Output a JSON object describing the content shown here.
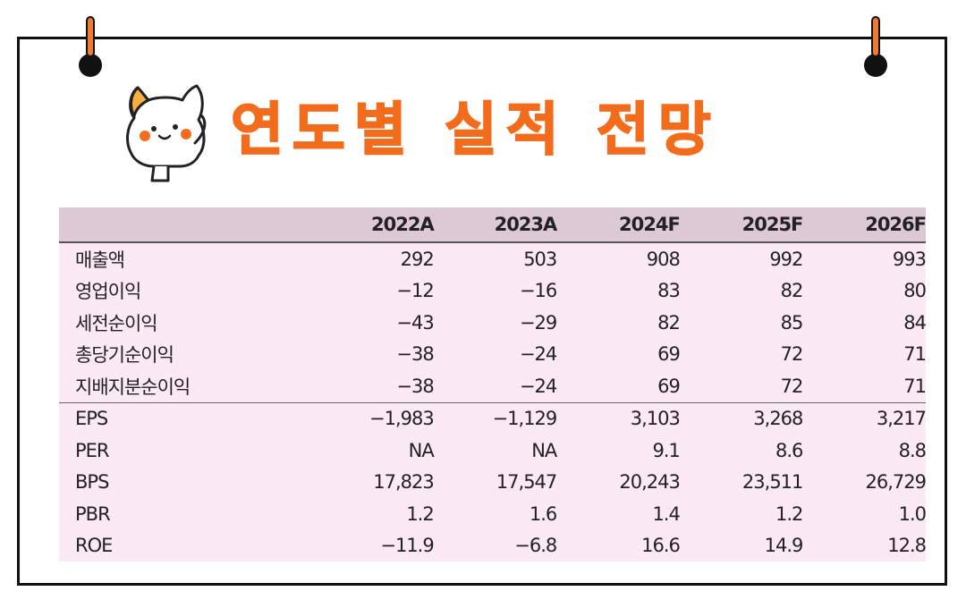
{
  "title": "연도별 실적 전망",
  "table": {
    "columns": [
      "2022A",
      "2023A",
      "2024F",
      "2025F",
      "2026F"
    ],
    "rows": [
      {
        "label": "매출액",
        "values": [
          "292",
          "503",
          "908",
          "992",
          "993"
        ]
      },
      {
        "label": "영업이익",
        "values": [
          "−12",
          "−16",
          "83",
          "82",
          "80"
        ]
      },
      {
        "label": "세전순이익",
        "values": [
          "−43",
          "−29",
          "82",
          "85",
          "84"
        ]
      },
      {
        "label": "총당기순이익",
        "values": [
          "−38",
          "−24",
          "69",
          "72",
          "71"
        ]
      },
      {
        "label": "지배지분순이익",
        "values": [
          "−38",
          "−24",
          "69",
          "72",
          "71"
        ]
      },
      {
        "label": "EPS",
        "values": [
          "−1,983",
          "−1,129",
          "3,103",
          "3,268",
          "3,217"
        ]
      },
      {
        "label": "PER",
        "values": [
          "NA",
          "NA",
          "9.1",
          "8.6",
          "8.8"
        ]
      },
      {
        "label": "BPS",
        "values": [
          "17,823",
          "17,547",
          "20,243",
          "23,511",
          "26,729"
        ]
      },
      {
        "label": "PBR",
        "values": [
          "1.2",
          "1.6",
          "1.4",
          "1.2",
          "1.0"
        ]
      },
      {
        "label": "ROE",
        "values": [
          "−11.9",
          "−6.8",
          "16.6",
          "14.9",
          "12.8"
        ]
      }
    ]
  },
  "colors": {
    "accent": "#f26c1c",
    "header_bg": "#ddc8d6",
    "table_bg": "#fbe9f5"
  },
  "icons": [
    "binder-pin-icon",
    "cat-mascot-icon"
  ]
}
